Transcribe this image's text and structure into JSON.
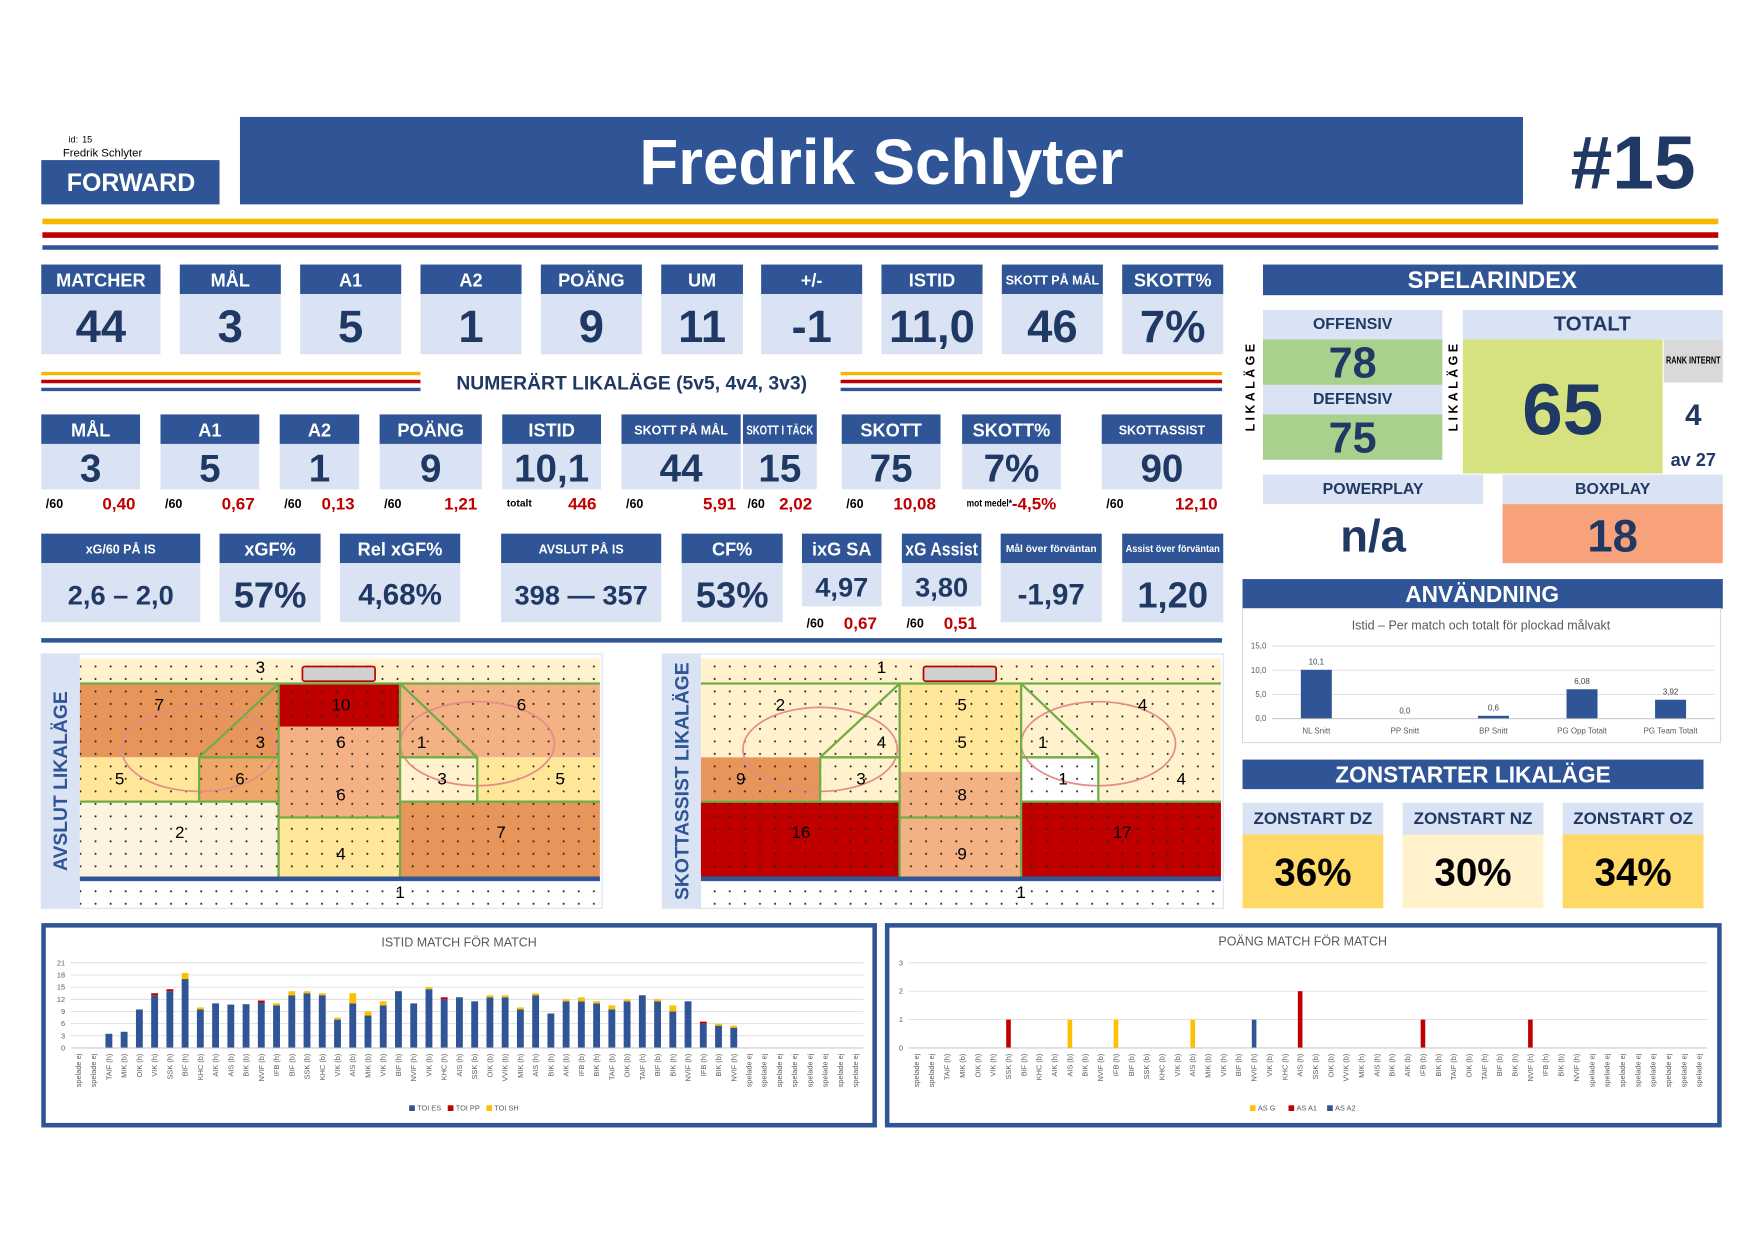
{
  "header": {
    "id_label": "id:",
    "id": "15",
    "name_small": "Fredrik Schlyter",
    "position": "FORWARD",
    "name": "Fredrik Schlyter",
    "number": "#15"
  },
  "totals": [
    {
      "label": "MATCHER",
      "value": "44"
    },
    {
      "label": "MÅL",
      "value": "3"
    },
    {
      "label": "A1",
      "value": "5"
    },
    {
      "label": "A2",
      "value": "1"
    },
    {
      "label": "POÄNG",
      "value": "9"
    },
    {
      "label": "UM",
      "value": "11"
    },
    {
      "label": "+/-",
      "value": "-1"
    },
    {
      "label": "ISTID",
      "value": "11,0"
    },
    {
      "label": "SKOTT PÅ MÅL",
      "value": "46"
    },
    {
      "label": "SKOTT%",
      "value": "7%"
    }
  ],
  "even_strength": {
    "title": "NUMERÄRT LIKALÄGE (5v5, 4v4, 3v3)",
    "stats": [
      {
        "label": "MÅL",
        "value": "3",
        "sub_label": "/60",
        "sub_value": "0,40"
      },
      {
        "label": "A1",
        "value": "5",
        "sub_label": "/60",
        "sub_value": "0,67"
      },
      {
        "label": "A2",
        "value": "1",
        "sub_label": "/60",
        "sub_value": "0,13"
      },
      {
        "label": "POÄNG",
        "value": "9",
        "sub_label": "/60",
        "sub_value": "1,21"
      },
      {
        "label": "ISTID",
        "value": "10,1",
        "sub_label": "totalt",
        "sub_value": "446"
      },
      {
        "label": "SKOTT PÅ MÅL",
        "value": "44",
        "sub_label": "/60",
        "sub_value": "5,91"
      },
      {
        "label": "SKOTT I TÄCK",
        "value": "15",
        "sub_label": "/60",
        "sub_value": "2,02"
      },
      {
        "label": "SKOTT",
        "value": "75",
        "sub_label": "/60",
        "sub_value": "10,08"
      },
      {
        "label": "SKOTT%",
        "value": "7%",
        "sub_label": "mot medel*",
        "sub_value": "-4,5%"
      },
      {
        "label": "SKOTTASSIST",
        "value": "90",
        "sub_label": "/60",
        "sub_value": "12,10"
      }
    ]
  },
  "xg_stats": [
    {
      "label": "xG/60 PÅ IS",
      "value": "2,6 – 2,0"
    },
    {
      "label": "xGF%",
      "value": "57%"
    },
    {
      "label": "Rel xGF%",
      "value": "4,68%"
    },
    {
      "label": "AVSLUT PÅ IS",
      "value": "398 — 357"
    },
    {
      "label": "CF%",
      "value": "53%"
    },
    {
      "label": "ixG SA",
      "value": "4,97",
      "sub_label": "/60",
      "sub_value": "0,67"
    },
    {
      "label": "xG Assist",
      "value": "3,80",
      "sub_label": "/60",
      "sub_value": "0,51"
    },
    {
      "label": "Mål över förväntan",
      "value": "-1,97"
    },
    {
      "label": "Assist över förväntan",
      "value": "1,20"
    }
  ],
  "player_index": {
    "title": "SPELARINDEX",
    "side_label": "LIKALÄGE",
    "offensive_label": "OFFENSIV",
    "offensive": "78",
    "defensive_label": "DEFENSIV",
    "defensive": "75",
    "total_label": "TOTALT",
    "total": "65",
    "rank_label": "RANK INTERNT",
    "rank": "4",
    "rank_of": "av 27",
    "pp_label": "POWERPLAY",
    "pp": "n/a",
    "bp_label": "BOXPLAY",
    "bp": "18"
  },
  "usage_title": "ANVÄNDNING",
  "zone_starts": {
    "title": "ZONSTARTER LIKALÄGE",
    "items": [
      {
        "label": "ZONSTART DZ",
        "value": "36%"
      },
      {
        "label": "ZONSTART NZ",
        "value": "30%"
      },
      {
        "label": "ZONSTART OZ",
        "value": "34%"
      }
    ]
  },
  "rinks": [
    {
      "title": "AVSLUT LIKALÄGE",
      "values": [
        3,
        7,
        10,
        6,
        3,
        6,
        1,
        5,
        6,
        3,
        5,
        6,
        2,
        4,
        7,
        1
      ]
    },
    {
      "title": "SKOTTASSIST LIKALÄGE",
      "values": [
        1,
        2,
        5,
        4,
        4,
        5,
        1,
        9,
        3,
        1,
        4,
        8,
        16,
        9,
        17,
        1
      ]
    }
  ],
  "chart_data": [
    {
      "type": "bar",
      "title": "Istid – Per match och totalt för plockad målvakt",
      "categories": [
        "NL Snitt",
        "PP Snitt",
        "BP Snitt",
        "PG Opp Totalt",
        "PG Team Totalt"
      ],
      "values": [
        10.1,
        0,
        0.6,
        6.08,
        3.92
      ],
      "value_labels": [
        "10,1",
        "0,0",
        "0,6",
        "6,08",
        "3,92"
      ],
      "color": "#2f5597",
      "ylim": [
        0,
        15
      ],
      "yticks": [
        {
          "value": 0,
          "label": "0,0"
        },
        {
          "value": 5,
          "label": "5,0"
        },
        {
          "value": 10,
          "label": "10,0"
        },
        {
          "value": 15,
          "label": "15,0"
        }
      ],
      "grid": true
    },
    {
      "type": "bar",
      "stacked": true,
      "title": "ISTID MATCH FÖR MATCH",
      "categories": [
        "spelade ej",
        "spelade ej",
        "TAIF (h)",
        "MIK (b)",
        "OIK (h)",
        "VIK (h)",
        "SSK (h)",
        "BIF (h)",
        "KHC (b)",
        "AIK (h)",
        "AIS (b)",
        "BIK (b)",
        "NVIF (b)",
        "IFB (h)",
        "BIF (b)",
        "SSK (b)",
        "KHC (b)",
        "VIK (b)",
        "AIS (b)",
        "MIK (b)",
        "VIK (h)",
        "BIF (h)",
        "NVIF (h)",
        "VIK (b)",
        "KHC (h)",
        "AIS (h)",
        "SSK (b)",
        "OIK (b)",
        "VVIK (b)",
        "MIK (h)",
        "AIS (h)",
        "BIK (h)",
        "AIK (b)",
        "IFB (b)",
        "BIK (h)",
        "TAIF (b)",
        "OIK (b)",
        "TAIF (h)",
        "BIF (b)",
        "BIK (h)",
        "NVIF (h)",
        "IFB (h)",
        "BIK (b)",
        "NVIF (h)",
        "spelade ej",
        "spelade ej",
        "spelade ej",
        "spelade ej",
        "spelade ej",
        "spelade ej",
        "spelade ej",
        "spelade ej"
      ],
      "series": [
        {
          "name": "TOI ES",
          "color": "#2f5597",
          "values": [
            null,
            null,
            3.5,
            4,
            9.5,
            13,
            14,
            17,
            9.5,
            11,
            10.7,
            10.8,
            11.2,
            10.5,
            13,
            13.5,
            13,
            7,
            11,
            8,
            10.5,
            14,
            11,
            14.5,
            12,
            12.5,
            11.5,
            12.5,
            12.5,
            9.5,
            13,
            8.5,
            11.5,
            11.5,
            11,
            9.5,
            11.5,
            13,
            11.5,
            9,
            11.5,
            6,
            5.5,
            5,
            null,
            null,
            null,
            null,
            null,
            null,
            null,
            null
          ]
        },
        {
          "name": "TOI PP",
          "color": "#c00000",
          "values": [
            null,
            null,
            0,
            0,
            0,
            0.5,
            0.5,
            0,
            0,
            0,
            0,
            0,
            0.5,
            0,
            0,
            0,
            0,
            0,
            0,
            0,
            0,
            0,
            0,
            0,
            0.5,
            0,
            0,
            0,
            0,
            0,
            0,
            0,
            0,
            0,
            0,
            0,
            0,
            0,
            0,
            0,
            0,
            0.5,
            0,
            0,
            null,
            null,
            null,
            null,
            null,
            null,
            null,
            null
          ]
        },
        {
          "name": "TOI SH",
          "color": "#ffc000",
          "values": [
            null,
            null,
            0,
            0,
            0,
            0,
            0,
            1.5,
            0.5,
            0,
            0,
            0,
            0,
            0.5,
            1,
            0.5,
            0.5,
            0.5,
            2.5,
            1,
            1,
            0,
            0,
            0.5,
            0,
            0,
            0,
            0.5,
            0.5,
            0.5,
            0.5,
            0,
            0.5,
            1,
            0.5,
            1,
            0.5,
            0,
            0.5,
            1.5,
            0,
            0,
            0.5,
            0.5,
            null,
            null,
            null,
            null,
            null,
            null,
            null,
            null
          ]
        }
      ],
      "ylim": [
        0,
        21
      ],
      "yticks": [
        0,
        3,
        6,
        9,
        12,
        15,
        18,
        21
      ],
      "grid": true,
      "legend": "bottom"
    },
    {
      "type": "bar",
      "stacked": true,
      "title": "POÄNG MATCH FÖR MATCH",
      "categories": [
        "spelade ej",
        "spelade ej",
        "TAIF (h)",
        "MIK (b)",
        "OIK (h)",
        "VIK (h)",
        "SSK (h)",
        "BIF (h)",
        "KHC (b)",
        "AIK (h)",
        "AIS (b)",
        "BIK (b)",
        "NVIF (b)",
        "IFB (h)",
        "BIF (b)",
        "SSK (b)",
        "KHC (b)",
        "VIK (b)",
        "AIS (b)",
        "MIK (b)",
        "VIK (h)",
        "BIF (h)",
        "NVIF (h)",
        "VIK (b)",
        "KHC (h)",
        "AIS (h)",
        "SSK (b)",
        "OIK (b)",
        "VVIK (b)",
        "MIK (h)",
        "AIS (h)",
        "BIK (h)",
        "AIK (b)",
        "IFB (b)",
        "BIK (h)",
        "TAIF (b)",
        "OIK (b)",
        "TAIF (h)",
        "BIF (b)",
        "BIK (h)",
        "NVIF (h)",
        "IFB (h)",
        "BIK (b)",
        "NVIF (h)",
        "spelade ej",
        "spelade ej",
        "spelade ej",
        "spelade ej",
        "spelade ej",
        "spelade ej",
        "spelade ej",
        "spelade ej"
      ],
      "series": [
        {
          "name": "AS G",
          "color": "#ffc000",
          "values": [
            null,
            null,
            0,
            0,
            0,
            0,
            0,
            0,
            0,
            0,
            1,
            0,
            0,
            1,
            0,
            0,
            0,
            0,
            1,
            0,
            0,
            0,
            0,
            0,
            0,
            0,
            0,
            0,
            0,
            0,
            0,
            0,
            0,
            0,
            0,
            0,
            0,
            0,
            0,
            0,
            0,
            0,
            0,
            0,
            null,
            null,
            null,
            null,
            null,
            null,
            null,
            null
          ]
        },
        {
          "name": "AS A1",
          "color": "#c00000",
          "values": [
            null,
            null,
            0,
            0,
            0,
            0,
            1,
            0,
            0,
            0,
            0,
            0,
            0,
            0,
            0,
            0,
            0,
            0,
            0,
            0,
            0,
            0,
            0,
            0,
            0,
            2,
            0,
            0,
            0,
            0,
            0,
            0,
            0,
            1,
            0,
            0,
            0,
            0,
            0,
            0,
            1,
            0,
            0,
            0,
            null,
            null,
            null,
            null,
            null,
            null,
            null,
            null
          ]
        },
        {
          "name": "AS A2",
          "color": "#2f5597",
          "values": [
            null,
            null,
            0,
            0,
            0,
            0,
            0,
            0,
            0,
            0,
            0,
            0,
            0,
            0,
            0,
            0,
            0,
            0,
            0,
            0,
            0,
            0,
            1,
            0,
            0,
            0,
            0,
            0,
            0,
            0,
            0,
            0,
            0,
            0,
            0,
            0,
            0,
            0,
            0,
            0,
            0,
            0,
            0,
            0,
            null,
            null,
            null,
            null,
            null,
            null,
            null,
            null
          ]
        }
      ],
      "ylim": [
        0,
        3
      ],
      "yticks": [
        0,
        1,
        2,
        3
      ],
      "grid": true,
      "legend": "bottom"
    }
  ]
}
